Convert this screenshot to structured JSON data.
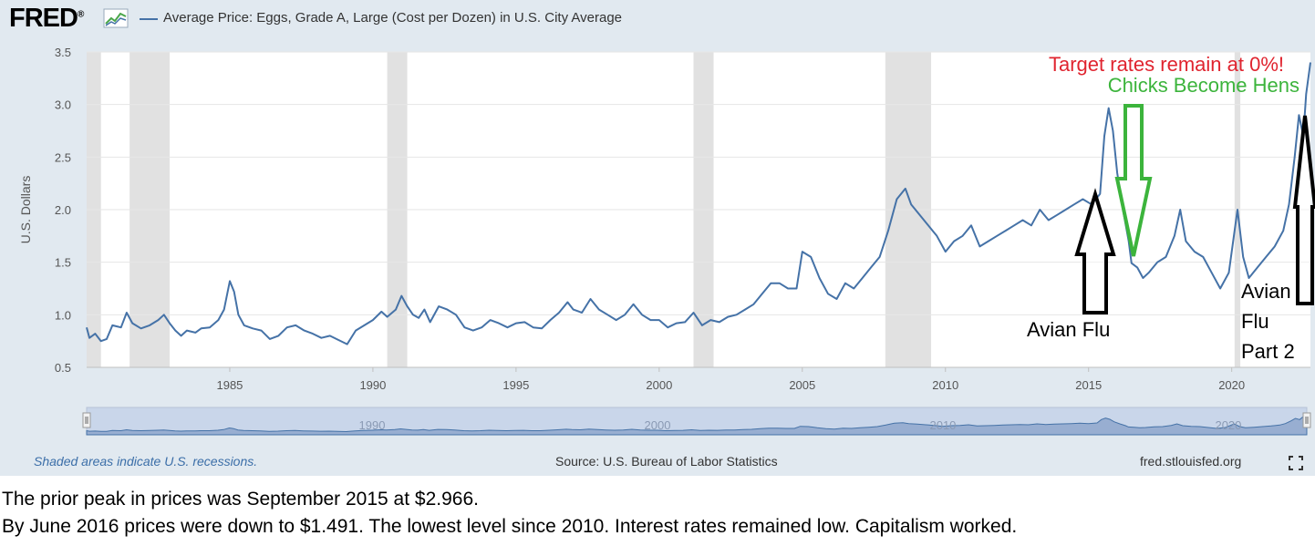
{
  "header": {
    "logo_text": "FRED",
    "logo_mark": "®",
    "logo_icon": "line-graph-icon",
    "series_legend": "Average Price: Eggs, Grade A, Large (Cost per Dozen) in U.S. City Average"
  },
  "footer": {
    "recession_note": "Shaded areas indicate U.S. recessions.",
    "source": "Source: U.S. Bureau of Labor Statistics",
    "site": "fred.stlouisfed.org",
    "fullscreen_icon": "fullscreen-icon"
  },
  "captions": [
    "The prior peak in prices was September 2015 at $2.966.",
    "By June 2016 prices were down to $1.491.  The lowest level since 2010. Interest rates remained low. Capitalism worked."
  ],
  "colors": {
    "series": "#4572a7",
    "recession": "#e1e1e1",
    "card_background": "#e1e9f0",
    "red_annotation": "#e0242f",
    "green_annotation": "#3cb43c"
  },
  "chart_data": {
    "type": "line",
    "title": "",
    "ylabel": "U.S. Dollars",
    "xlim": [
      1980.0,
      2022.75
    ],
    "ylim": [
      0.5,
      3.5
    ],
    "yticks": [
      "0.5",
      "1.0",
      "1.5",
      "2.0",
      "2.5",
      "3.0",
      "3.5"
    ],
    "xticks": [
      "1985",
      "1990",
      "1995",
      "2000",
      "2005",
      "2010",
      "2015",
      "2020"
    ],
    "grid": true,
    "recessions": [
      [
        1980.0,
        1980.5
      ],
      [
        1981.5,
        1982.9
      ],
      [
        1990.5,
        1991.2
      ],
      [
        2001.2,
        2001.9
      ],
      [
        2007.9,
        2009.5
      ],
      [
        2020.1,
        2020.3
      ]
    ],
    "series": [
      {
        "name": "Average Price: Eggs, Grade A, Large (Cost per Dozen) in U.S. City Average",
        "points": [
          [
            1980.0,
            0.88
          ],
          [
            1980.1,
            0.78
          ],
          [
            1980.3,
            0.82
          ],
          [
            1980.5,
            0.75
          ],
          [
            1980.7,
            0.77
          ],
          [
            1980.9,
            0.9
          ],
          [
            1981.2,
            0.88
          ],
          [
            1981.4,
            1.02
          ],
          [
            1981.6,
            0.92
          ],
          [
            1981.9,
            0.87
          ],
          [
            1982.2,
            0.9
          ],
          [
            1982.5,
            0.95
          ],
          [
            1982.7,
            1.0
          ],
          [
            1982.9,
            0.92
          ],
          [
            1983.1,
            0.85
          ],
          [
            1983.3,
            0.8
          ],
          [
            1983.5,
            0.85
          ],
          [
            1983.8,
            0.83
          ],
          [
            1984.0,
            0.87
          ],
          [
            1984.3,
            0.88
          ],
          [
            1984.6,
            0.95
          ],
          [
            1984.8,
            1.05
          ],
          [
            1985.0,
            1.32
          ],
          [
            1985.15,
            1.22
          ],
          [
            1985.3,
            1.0
          ],
          [
            1985.5,
            0.9
          ],
          [
            1985.8,
            0.87
          ],
          [
            1986.1,
            0.85
          ],
          [
            1986.4,
            0.77
          ],
          [
            1986.7,
            0.8
          ],
          [
            1987.0,
            0.88
          ],
          [
            1987.3,
            0.9
          ],
          [
            1987.6,
            0.85
          ],
          [
            1987.9,
            0.82
          ],
          [
            1988.2,
            0.78
          ],
          [
            1988.5,
            0.8
          ],
          [
            1988.8,
            0.76
          ],
          [
            1989.1,
            0.72
          ],
          [
            1989.4,
            0.85
          ],
          [
            1989.7,
            0.9
          ],
          [
            1990.0,
            0.95
          ],
          [
            1990.3,
            1.03
          ],
          [
            1990.5,
            0.98
          ],
          [
            1990.8,
            1.05
          ],
          [
            1991.0,
            1.18
          ],
          [
            1991.2,
            1.08
          ],
          [
            1991.4,
            1.0
          ],
          [
            1991.6,
            0.97
          ],
          [
            1991.8,
            1.05
          ],
          [
            1992.0,
            0.93
          ],
          [
            1992.3,
            1.08
          ],
          [
            1992.6,
            1.05
          ],
          [
            1992.9,
            1.0
          ],
          [
            1993.2,
            0.88
          ],
          [
            1993.5,
            0.85
          ],
          [
            1993.8,
            0.88
          ],
          [
            1994.1,
            0.95
          ],
          [
            1994.4,
            0.92
          ],
          [
            1994.7,
            0.88
          ],
          [
            1995.0,
            0.92
          ],
          [
            1995.3,
            0.93
          ],
          [
            1995.6,
            0.88
          ],
          [
            1995.9,
            0.87
          ],
          [
            1996.2,
            0.95
          ],
          [
            1996.5,
            1.02
          ],
          [
            1996.8,
            1.12
          ],
          [
            1997.0,
            1.05
          ],
          [
            1997.3,
            1.02
          ],
          [
            1997.6,
            1.15
          ],
          [
            1997.9,
            1.05
          ],
          [
            1998.2,
            1.0
          ],
          [
            1998.5,
            0.95
          ],
          [
            1998.8,
            1.0
          ],
          [
            1999.1,
            1.1
          ],
          [
            1999.4,
            1.0
          ],
          [
            1999.7,
            0.95
          ],
          [
            2000.0,
            0.95
          ],
          [
            2000.3,
            0.88
          ],
          [
            2000.6,
            0.92
          ],
          [
            2000.9,
            0.93
          ],
          [
            2001.2,
            1.02
          ],
          [
            2001.5,
            0.9
          ],
          [
            2001.8,
            0.95
          ],
          [
            2002.1,
            0.93
          ],
          [
            2002.4,
            0.98
          ],
          [
            2002.7,
            1.0
          ],
          [
            2003.0,
            1.05
          ],
          [
            2003.3,
            1.1
          ],
          [
            2003.6,
            1.2
          ],
          [
            2003.9,
            1.3
          ],
          [
            2004.2,
            1.3
          ],
          [
            2004.5,
            1.25
          ],
          [
            2004.8,
            1.25
          ],
          [
            2005.0,
            1.6
          ],
          [
            2005.3,
            1.55
          ],
          [
            2005.6,
            1.35
          ],
          [
            2005.9,
            1.2
          ],
          [
            2006.2,
            1.15
          ],
          [
            2006.5,
            1.3
          ],
          [
            2006.8,
            1.25
          ],
          [
            2007.1,
            1.35
          ],
          [
            2007.4,
            1.45
          ],
          [
            2007.7,
            1.55
          ],
          [
            2008.0,
            1.8
          ],
          [
            2008.3,
            2.1
          ],
          [
            2008.6,
            2.2
          ],
          [
            2008.8,
            2.05
          ],
          [
            2009.1,
            1.95
          ],
          [
            2009.4,
            1.85
          ],
          [
            2009.7,
            1.75
          ],
          [
            2010.0,
            1.6
          ],
          [
            2010.3,
            1.7
          ],
          [
            2010.6,
            1.75
          ],
          [
            2010.9,
            1.85
          ],
          [
            2011.2,
            1.65
          ],
          [
            2011.5,
            1.7
          ],
          [
            2011.8,
            1.75
          ],
          [
            2012.1,
            1.8
          ],
          [
            2012.4,
            1.85
          ],
          [
            2012.7,
            1.9
          ],
          [
            2013.0,
            1.85
          ],
          [
            2013.3,
            2.0
          ],
          [
            2013.6,
            1.9
          ],
          [
            2013.9,
            1.95
          ],
          [
            2014.2,
            2.0
          ],
          [
            2014.5,
            2.05
          ],
          [
            2014.8,
            2.1
          ],
          [
            2015.1,
            2.05
          ],
          [
            2015.4,
            2.15
          ],
          [
            2015.55,
            2.7
          ],
          [
            2015.7,
            2.966
          ],
          [
            2015.85,
            2.75
          ],
          [
            2016.0,
            2.35
          ],
          [
            2016.2,
            2.0
          ],
          [
            2016.4,
            1.7
          ],
          [
            2016.5,
            1.491
          ],
          [
            2016.7,
            1.45
          ],
          [
            2016.9,
            1.35
          ],
          [
            2017.1,
            1.4
          ],
          [
            2017.4,
            1.5
          ],
          [
            2017.7,
            1.55
          ],
          [
            2018.0,
            1.75
          ],
          [
            2018.2,
            2.0
          ],
          [
            2018.4,
            1.7
          ],
          [
            2018.7,
            1.6
          ],
          [
            2019.0,
            1.55
          ],
          [
            2019.3,
            1.4
          ],
          [
            2019.6,
            1.25
          ],
          [
            2019.9,
            1.4
          ],
          [
            2020.2,
            2.0
          ],
          [
            2020.4,
            1.55
          ],
          [
            2020.6,
            1.35
          ],
          [
            2020.9,
            1.45
          ],
          [
            2021.2,
            1.55
          ],
          [
            2021.5,
            1.65
          ],
          [
            2021.8,
            1.8
          ],
          [
            2022.0,
            2.05
          ],
          [
            2022.2,
            2.5
          ],
          [
            2022.35,
            2.9
          ],
          [
            2022.5,
            2.7
          ],
          [
            2022.6,
            3.1
          ],
          [
            2022.75,
            3.4
          ]
        ]
      }
    ],
    "annotations": [
      {
        "id": "target-rates",
        "text": "Target rates remain at 0%!",
        "color": "#e0242f"
      },
      {
        "id": "chicks",
        "text": "Chicks Become Hens",
        "color": "#3cb43c"
      },
      {
        "id": "avian-1",
        "lines": [
          "Avian Flu"
        ],
        "color": "#000000"
      },
      {
        "id": "avian-2",
        "lines": [
          "Avian",
          "Flu",
          "Part 2"
        ],
        "color": "#000000"
      }
    ],
    "navigator": {
      "labels": [
        "1990",
        "2000",
        "2010",
        "2020"
      ]
    }
  }
}
